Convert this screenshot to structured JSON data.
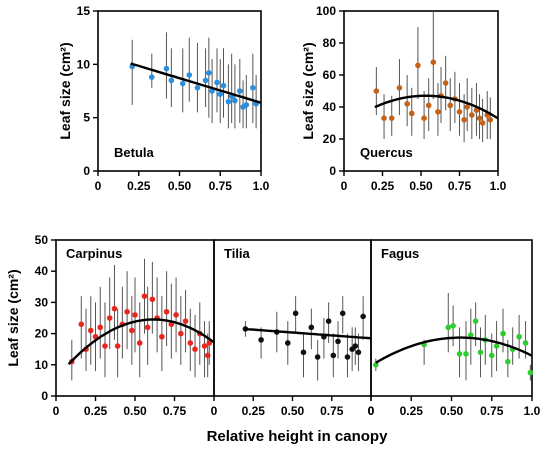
{
  "chart_data": [
    {
      "type": "scatter",
      "panel_label": "Betula",
      "ylabel": "Leaf size (cm²)",
      "xlim": [
        0,
        1
      ],
      "ylim": [
        0,
        15
      ],
      "x_ticks": [
        "0",
        "0.25",
        "0.50",
        "0.75",
        "1.0"
      ],
      "y_ticks": [
        "0",
        "5",
        "10",
        "15"
      ],
      "color": "#2b8fe0",
      "points": [
        {
          "x": 0.21,
          "y": 9.8,
          "lo": 6.2,
          "hi": 12.3
        },
        {
          "x": 0.33,
          "y": 8.8,
          "lo": 7.8,
          "hi": 11.0
        },
        {
          "x": 0.42,
          "y": 9.6,
          "lo": 6.8,
          "hi": 13.0
        },
        {
          "x": 0.45,
          "y": 8.5,
          "lo": 6.0,
          "hi": 11.5
        },
        {
          "x": 0.52,
          "y": 8.2,
          "lo": 5.5,
          "hi": 11.5
        },
        {
          "x": 0.56,
          "y": 9.0,
          "lo": 6.5,
          "hi": 12.5
        },
        {
          "x": 0.61,
          "y": 7.8,
          "lo": 5.5,
          "hi": 12.0
        },
        {
          "x": 0.66,
          "y": 8.5,
          "lo": 6.0,
          "hi": 11.5
        },
        {
          "x": 0.68,
          "y": 9.2,
          "lo": 5.0,
          "hi": 12.5
        },
        {
          "x": 0.7,
          "y": 7.5,
          "lo": 4.5,
          "hi": 10.5
        },
        {
          "x": 0.73,
          "y": 8.3,
          "lo": 5.5,
          "hi": 11.5
        },
        {
          "x": 0.75,
          "y": 7.2,
          "lo": 4.5,
          "hi": 10.5
        },
        {
          "x": 0.77,
          "y": 8.0,
          "lo": 5.0,
          "hi": 11.5
        },
        {
          "x": 0.8,
          "y": 6.5,
          "lo": 4.0,
          "hi": 10.0
        },
        {
          "x": 0.82,
          "y": 7.0,
          "lo": 4.5,
          "hi": 11.0
        },
        {
          "x": 0.84,
          "y": 6.6,
          "lo": 4.0,
          "hi": 10.0
        },
        {
          "x": 0.87,
          "y": 7.5,
          "lo": 4.5,
          "hi": 10.5
        },
        {
          "x": 0.89,
          "y": 6.0,
          "lo": 4.0,
          "hi": 8.5
        },
        {
          "x": 0.91,
          "y": 6.2,
          "lo": 4.0,
          "hi": 9.0
        },
        {
          "x": 0.95,
          "y": 7.8,
          "lo": 4.5,
          "hi": 11.0
        },
        {
          "x": 0.97,
          "y": 6.3,
          "lo": 4.0,
          "hi": 9.0
        }
      ],
      "fit": {
        "kind": "linear",
        "x0": 0.2,
        "x1": 1.0,
        "coef": [
          11.0,
          -4.6
        ]
      }
    },
    {
      "type": "scatter",
      "panel_label": "Quercus",
      "ylabel": "Leaf size (cm²)",
      "xlim": [
        0,
        1
      ],
      "ylim": [
        0,
        100
      ],
      "x_ticks": [
        "0",
        "0.25",
        "0.50",
        "0.75",
        "1.0"
      ],
      "y_ticks": [
        "0",
        "20",
        "40",
        "60",
        "80",
        "100"
      ],
      "color": "#c4621a",
      "points": [
        {
          "x": 0.21,
          "y": 50,
          "lo": 35,
          "hi": 65
        },
        {
          "x": 0.26,
          "y": 33,
          "lo": 20,
          "hi": 48
        },
        {
          "x": 0.31,
          "y": 33,
          "lo": 22,
          "hi": 47
        },
        {
          "x": 0.36,
          "y": 52,
          "lo": 35,
          "hi": 70
        },
        {
          "x": 0.41,
          "y": 42,
          "lo": 28,
          "hi": 60
        },
        {
          "x": 0.44,
          "y": 36,
          "lo": 22,
          "hi": 52
        },
        {
          "x": 0.48,
          "y": 66,
          "lo": 45,
          "hi": 90
        },
        {
          "x": 0.52,
          "y": 33,
          "lo": 20,
          "hi": 50
        },
        {
          "x": 0.55,
          "y": 41,
          "lo": 25,
          "hi": 58
        },
        {
          "x": 0.58,
          "y": 68,
          "lo": 45,
          "hi": 100
        },
        {
          "x": 0.61,
          "y": 37,
          "lo": 22,
          "hi": 55
        },
        {
          "x": 0.63,
          "y": 47,
          "lo": 30,
          "hi": 65
        },
        {
          "x": 0.66,
          "y": 55,
          "lo": 38,
          "hi": 72
        },
        {
          "x": 0.69,
          "y": 41,
          "lo": 25,
          "hi": 58
        },
        {
          "x": 0.72,
          "y": 45,
          "lo": 30,
          "hi": 62
        },
        {
          "x": 0.75,
          "y": 37,
          "lo": 22,
          "hi": 55
        },
        {
          "x": 0.78,
          "y": 32,
          "lo": 18,
          "hi": 48
        },
        {
          "x": 0.8,
          "y": 40,
          "lo": 25,
          "hi": 58
        },
        {
          "x": 0.83,
          "y": 35,
          "lo": 20,
          "hi": 52
        },
        {
          "x": 0.86,
          "y": 38,
          "lo": 22,
          "hi": 55
        },
        {
          "x": 0.88,
          "y": 33,
          "lo": 20,
          "hi": 48
        },
        {
          "x": 0.9,
          "y": 30,
          "lo": 18,
          "hi": 45
        },
        {
          "x": 0.93,
          "y": 35,
          "lo": 20,
          "hi": 50
        },
        {
          "x": 0.95,
          "y": 32,
          "lo": 20,
          "hi": 46
        }
      ],
      "fit": {
        "kind": "quadratic",
        "x0": 0.2,
        "x1": 1.0,
        "coef": [
          28.8,
          68.6,
          -64.5
        ]
      }
    },
    {
      "type": "scatter",
      "panel_label": "Carpinus",
      "ylabel": "Leaf size (cm²)",
      "xlim": [
        0,
        1
      ],
      "ylim": [
        0,
        50
      ],
      "x_ticks": [
        "0",
        "0.25",
        "0.50",
        "0.75",
        "0"
      ],
      "y_ticks": [
        "0",
        "10",
        "20",
        "30",
        "40",
        "50"
      ],
      "color": "#e8281c",
      "points": [
        {
          "x": 0.1,
          "y": 11,
          "lo": 5,
          "hi": 18
        },
        {
          "x": 0.16,
          "y": 23,
          "lo": 12,
          "hi": 32
        },
        {
          "x": 0.19,
          "y": 15,
          "lo": 8,
          "hi": 28
        },
        {
          "x": 0.22,
          "y": 21,
          "lo": 10,
          "hi": 32
        },
        {
          "x": 0.25,
          "y": 19,
          "lo": 8,
          "hi": 30
        },
        {
          "x": 0.28,
          "y": 22,
          "lo": 12,
          "hi": 35
        },
        {
          "x": 0.31,
          "y": 16,
          "lo": 6,
          "hi": 30
        },
        {
          "x": 0.34,
          "y": 25,
          "lo": 15,
          "hi": 38
        },
        {
          "x": 0.37,
          "y": 28,
          "lo": 18,
          "hi": 42
        },
        {
          "x": 0.39,
          "y": 16,
          "lo": 6,
          "hi": 28
        },
        {
          "x": 0.42,
          "y": 23,
          "lo": 12,
          "hi": 35
        },
        {
          "x": 0.45,
          "y": 27,
          "lo": 15,
          "hi": 40
        },
        {
          "x": 0.48,
          "y": 21,
          "lo": 10,
          "hi": 32
        },
        {
          "x": 0.5,
          "y": 26,
          "lo": 14,
          "hi": 38
        },
        {
          "x": 0.53,
          "y": 17,
          "lo": 6,
          "hi": 30
        },
        {
          "x": 0.56,
          "y": 32,
          "lo": 20,
          "hi": 44
        },
        {
          "x": 0.58,
          "y": 22,
          "lo": 10,
          "hi": 35
        },
        {
          "x": 0.61,
          "y": 31,
          "lo": 20,
          "hi": 43
        },
        {
          "x": 0.64,
          "y": 25,
          "lo": 14,
          "hi": 38
        },
        {
          "x": 0.67,
          "y": 19,
          "lo": 8,
          "hi": 32
        },
        {
          "x": 0.7,
          "y": 27,
          "lo": 16,
          "hi": 40
        },
        {
          "x": 0.73,
          "y": 23,
          "lo": 12,
          "hi": 36
        },
        {
          "x": 0.76,
          "y": 26,
          "lo": 14,
          "hi": 38
        },
        {
          "x": 0.79,
          "y": 20,
          "lo": 10,
          "hi": 32
        },
        {
          "x": 0.82,
          "y": 24,
          "lo": 14,
          "hi": 34
        },
        {
          "x": 0.85,
          "y": 17,
          "lo": 8,
          "hi": 28
        },
        {
          "x": 0.88,
          "y": 15,
          "lo": 6,
          "hi": 26
        },
        {
          "x": 0.91,
          "y": 20,
          "lo": 10,
          "hi": 30
        },
        {
          "x": 0.94,
          "y": 16,
          "lo": 6,
          "hi": 24
        },
        {
          "x": 0.96,
          "y": 13,
          "lo": 6,
          "hi": 20
        },
        {
          "x": 0.97,
          "y": 17,
          "lo": 10,
          "hi": 24
        }
      ],
      "fit": {
        "kind": "quadratic",
        "x0": 0.08,
        "x1": 1.0,
        "coef": [
          5.6,
          61.4,
          -49.8
        ]
      }
    },
    {
      "type": "scatter",
      "panel_label": "Tilia",
      "xlim": [
        0,
        1
      ],
      "ylim": [
        0,
        50
      ],
      "x_ticks": [
        "0.25",
        "0.50",
        "0.75",
        "0"
      ],
      "color": "#111111",
      "points": [
        {
          "x": 0.2,
          "y": 21.5,
          "lo": 19,
          "hi": 24
        },
        {
          "x": 0.3,
          "y": 18,
          "lo": 12,
          "hi": 22
        },
        {
          "x": 0.4,
          "y": 20.5,
          "lo": 14,
          "hi": 27
        },
        {
          "x": 0.47,
          "y": 17,
          "lo": 10,
          "hi": 24
        },
        {
          "x": 0.52,
          "y": 26.5,
          "lo": 20,
          "hi": 32
        },
        {
          "x": 0.57,
          "y": 14,
          "lo": 6,
          "hi": 20
        },
        {
          "x": 0.62,
          "y": 22,
          "lo": 15,
          "hi": 28
        },
        {
          "x": 0.66,
          "y": 12.5,
          "lo": 5,
          "hi": 18
        },
        {
          "x": 0.7,
          "y": 19,
          "lo": 12,
          "hi": 25
        },
        {
          "x": 0.73,
          "y": 24,
          "lo": 17,
          "hi": 30
        },
        {
          "x": 0.76,
          "y": 13,
          "lo": 6,
          "hi": 20
        },
        {
          "x": 0.79,
          "y": 17.5,
          "lo": 12,
          "hi": 24
        },
        {
          "x": 0.82,
          "y": 26.5,
          "lo": 20,
          "hi": 32
        },
        {
          "x": 0.85,
          "y": 12.5,
          "lo": 6,
          "hi": 20
        },
        {
          "x": 0.88,
          "y": 15,
          "lo": 8,
          "hi": 22
        },
        {
          "x": 0.9,
          "y": 16,
          "lo": 10,
          "hi": 22
        },
        {
          "x": 0.92,
          "y": 14,
          "lo": 8,
          "hi": 20
        },
        {
          "x": 0.95,
          "y": 25.5,
          "lo": 18,
          "hi": 32
        }
      ],
      "fit": {
        "kind": "linear",
        "x0": 0.2,
        "x1": 1.0,
        "coef": [
          22.2,
          -3.7
        ]
      }
    },
    {
      "type": "scatter",
      "panel_label": "Fagus",
      "xlim": [
        0,
        1
      ],
      "ylim": [
        0,
        50
      ],
      "x_ticks": [
        "0",
        "0.25",
        "0.50",
        "0.75",
        "1.0"
      ],
      "color": "#2fcc2f",
      "points": [
        {
          "x": 0.03,
          "y": 10,
          "lo": 8,
          "hi": 12
        },
        {
          "x": 0.33,
          "y": 16.5,
          "lo": 10,
          "hi": 18
        },
        {
          "x": 0.48,
          "y": 22,
          "lo": 14,
          "hi": 33
        },
        {
          "x": 0.51,
          "y": 22.5,
          "lo": 16,
          "hi": 29
        },
        {
          "x": 0.55,
          "y": 13.5,
          "lo": 6,
          "hi": 22
        },
        {
          "x": 0.59,
          "y": 13.5,
          "lo": 5,
          "hi": 24
        },
        {
          "x": 0.62,
          "y": 19.5,
          "lo": 10,
          "hi": 28
        },
        {
          "x": 0.65,
          "y": 24,
          "lo": 16,
          "hi": 30
        },
        {
          "x": 0.68,
          "y": 14,
          "lo": 6,
          "hi": 22
        },
        {
          "x": 0.71,
          "y": 18,
          "lo": 10,
          "hi": 26
        },
        {
          "x": 0.75,
          "y": 13,
          "lo": 6,
          "hi": 20
        },
        {
          "x": 0.78,
          "y": 16,
          "lo": 8,
          "hi": 24
        },
        {
          "x": 0.82,
          "y": 20,
          "lo": 14,
          "hi": 28
        },
        {
          "x": 0.85,
          "y": 11,
          "lo": 6,
          "hi": 18
        },
        {
          "x": 0.88,
          "y": 15,
          "lo": 10,
          "hi": 22
        },
        {
          "x": 0.92,
          "y": 19,
          "lo": 12,
          "hi": 26
        },
        {
          "x": 0.96,
          "y": 17,
          "lo": 12,
          "hi": 24
        },
        {
          "x": 0.99,
          "y": 7.5,
          "lo": 5,
          "hi": 10
        }
      ],
      "fit": {
        "kind": "quadratic",
        "x0": 0.03,
        "x1": 1.0,
        "coef": [
          9.7,
          32.5,
          -29.3
        ]
      }
    }
  ],
  "common_xlabel": "Relative height in canopy"
}
